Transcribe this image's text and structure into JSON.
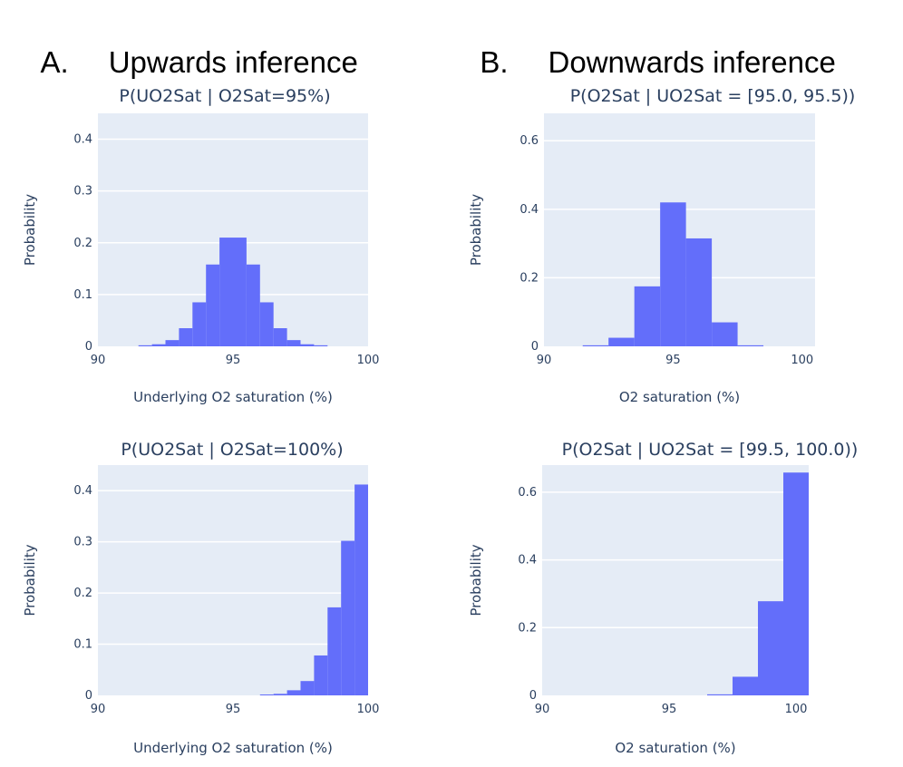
{
  "sections": [
    {
      "letter": "A.",
      "title": "Upwards inference"
    },
    {
      "letter": "B.",
      "title": "Downwards inference"
    }
  ],
  "colors": {
    "bar": "#636efa",
    "plot_bg": "#e5ecf6",
    "grid": "#ffffff",
    "text": "#2a3f5f"
  },
  "chart_data": [
    {
      "type": "bar",
      "title": "P(UO2Sat | O2Sat=95%)",
      "xlabel": "Underlying O2 saturation (%)",
      "ylabel": "Probability",
      "xlim": [
        90,
        100
      ],
      "ylim": [
        0,
        0.45
      ],
      "xticks": [
        90,
        95,
        100
      ],
      "yticks": [
        0,
        0.1,
        0.2,
        0.3,
        0.4
      ],
      "ytick_labels": [
        "0",
        "0.1",
        "0.2",
        "0.3",
        "0.4"
      ],
      "grid": true,
      "bin_width": 0.5,
      "bins": [
        {
          "x0": 91.5,
          "y": 0.002
        },
        {
          "x0": 92.0,
          "y": 0.004
        },
        {
          "x0": 92.5,
          "y": 0.012
        },
        {
          "x0": 93.0,
          "y": 0.035
        },
        {
          "x0": 93.5,
          "y": 0.085
        },
        {
          "x0": 94.0,
          "y": 0.158
        },
        {
          "x0": 94.5,
          "y": 0.21
        },
        {
          "x0": 95.0,
          "y": 0.21
        },
        {
          "x0": 95.5,
          "y": 0.158
        },
        {
          "x0": 96.0,
          "y": 0.085
        },
        {
          "x0": 96.5,
          "y": 0.035
        },
        {
          "x0": 97.0,
          "y": 0.012
        },
        {
          "x0": 97.5,
          "y": 0.004
        },
        {
          "x0": 98.0,
          "y": 0.002
        }
      ]
    },
    {
      "type": "bar",
      "title": "P(O2Sat | UO2Sat = [95.0, 95.5))",
      "xlabel": "O2 saturation (%)",
      "ylabel": "Probability",
      "xlim": [
        90,
        100.5
      ],
      "ylim": [
        0,
        0.68
      ],
      "xticks": [
        90,
        95,
        100
      ],
      "yticks": [
        0,
        0.2,
        0.4,
        0.6
      ],
      "ytick_labels": [
        "0",
        "0.2",
        "0.4",
        "0.6"
      ],
      "grid": true,
      "bin_width": 1,
      "bins": [
        {
          "x0": 91.5,
          "y": 0.003
        },
        {
          "x0": 92.5,
          "y": 0.025
        },
        {
          "x0": 93.5,
          "y": 0.175
        },
        {
          "x0": 94.5,
          "y": 0.42
        },
        {
          "x0": 95.5,
          "y": 0.315
        },
        {
          "x0": 96.5,
          "y": 0.07
        },
        {
          "x0": 97.5,
          "y": 0.003
        }
      ]
    },
    {
      "type": "bar",
      "title": "P(UO2Sat | O2Sat=100%)",
      "xlabel": "Underlying O2 saturation (%)",
      "ylabel": "Probability",
      "xlim": [
        90,
        100
      ],
      "ylim": [
        0,
        0.45
      ],
      "xticks": [
        90,
        95,
        100
      ],
      "yticks": [
        0,
        0.1,
        0.2,
        0.3,
        0.4
      ],
      "ytick_labels": [
        "0",
        "0.1",
        "0.2",
        "0.3",
        "0.4"
      ],
      "grid": true,
      "bin_width": 0.5,
      "bins": [
        {
          "x0": 96.0,
          "y": 0.001
        },
        {
          "x0": 96.5,
          "y": 0.003
        },
        {
          "x0": 97.0,
          "y": 0.01
        },
        {
          "x0": 97.5,
          "y": 0.028
        },
        {
          "x0": 98.0,
          "y": 0.078
        },
        {
          "x0": 98.5,
          "y": 0.172
        },
        {
          "x0": 99.0,
          "y": 0.302
        },
        {
          "x0": 99.5,
          "y": 0.412
        }
      ]
    },
    {
      "type": "bar",
      "title": "P(O2Sat | UO2Sat = [99.5, 100.0))",
      "xlabel": "O2 saturation (%)",
      "ylabel": "Probability",
      "xlim": [
        90,
        100.5
      ],
      "ylim": [
        0,
        0.68
      ],
      "xticks": [
        90,
        95,
        100
      ],
      "yticks": [
        0,
        0.2,
        0.4,
        0.6
      ],
      "ytick_labels": [
        "0",
        "0.2",
        "0.4",
        "0.6"
      ],
      "grid": true,
      "bin_width": 1,
      "bins": [
        {
          "x0": 96.5,
          "y": 0.003
        },
        {
          "x0": 97.5,
          "y": 0.055
        },
        {
          "x0": 98.5,
          "y": 0.278
        },
        {
          "x0": 99.5,
          "y": 0.658
        }
      ]
    }
  ]
}
